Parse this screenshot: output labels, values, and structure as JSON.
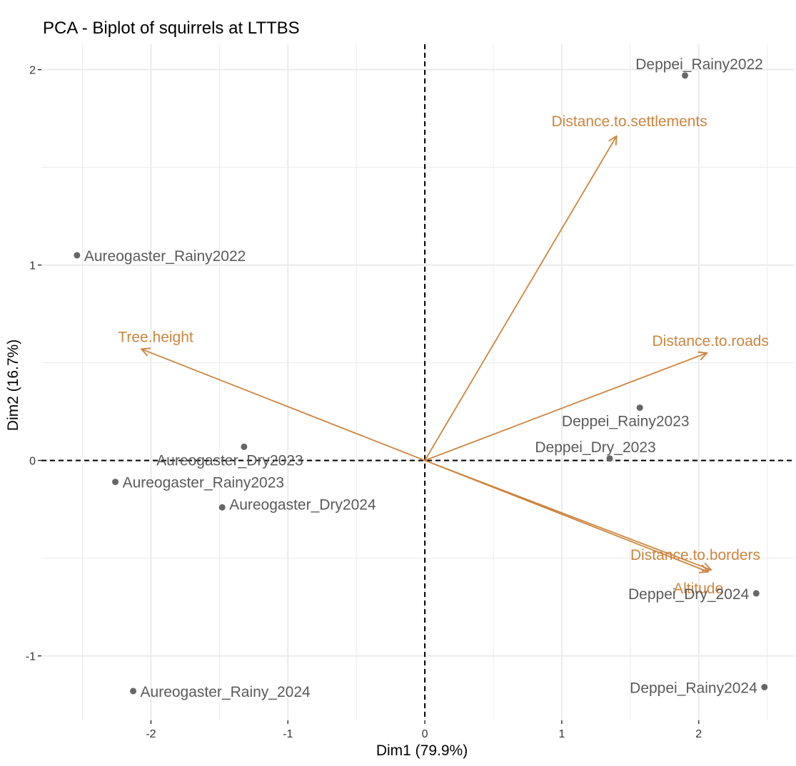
{
  "chart_data": {
    "type": "scatter",
    "title": "PCA - Biplot of squirrels at LTTBS",
    "xlabel": "Dim1 (79.9%)",
    "ylabel": "Dim2 (16.7%)",
    "xlim": [
      -2.8,
      2.7
    ],
    "ylim": [
      -1.33,
      2.13
    ],
    "x_ticks": [
      -2,
      -1,
      0,
      1,
      2
    ],
    "x_tick_labels": [
      "-2",
      "-1",
      "0",
      "1",
      "2"
    ],
    "y_ticks": [
      -1,
      0,
      1,
      2
    ],
    "y_tick_labels": [
      "-1",
      "0",
      "1",
      "2"
    ],
    "grid": true,
    "reference_lines": {
      "x": 0,
      "y": 0,
      "style": "dashed"
    },
    "colors": {
      "points": "#666666",
      "variables": "#CD853F",
      "grid": "#ebebeb",
      "reference": "#000000"
    },
    "points": [
      {
        "name": "Deppei_Rainy2022",
        "x": 1.9,
        "y": 1.97
      },
      {
        "name": "Aureogaster_Rainy2022",
        "x": -2.54,
        "y": 1.05
      },
      {
        "name": "Deppei_Rainy2023",
        "x": 1.57,
        "y": 0.27
      },
      {
        "name": "Deppei_Dry_2023",
        "x": 1.35,
        "y": 0.01
      },
      {
        "name": "Aureogaster_Dry2023",
        "x": -1.32,
        "y": 0.07
      },
      {
        "name": "Aureogaster_Rainy2023",
        "x": -2.26,
        "y": -0.11
      },
      {
        "name": "Aureogaster_Dry2024",
        "x": -1.48,
        "y": -0.24
      },
      {
        "name": "Deppei_Dry_2024",
        "x": 2.42,
        "y": -0.68
      },
      {
        "name": "Aureogaster_Rainy_2024",
        "x": -2.13,
        "y": -1.18
      },
      {
        "name": "Deppei_Rainy2024",
        "x": 2.48,
        "y": -1.16
      }
    ],
    "variables": [
      {
        "name": "Distance.to.settlements",
        "x": 1.4,
        "y": 1.66
      },
      {
        "name": "Tree.height",
        "x": -2.07,
        "y": 0.57
      },
      {
        "name": "Distance.to.roads",
        "x": 2.06,
        "y": 0.55
      },
      {
        "name": "Distance.to.borders",
        "x": 2.09,
        "y": -0.56
      },
      {
        "name": "Altitude",
        "x": 2.07,
        "y": -0.57
      }
    ]
  }
}
